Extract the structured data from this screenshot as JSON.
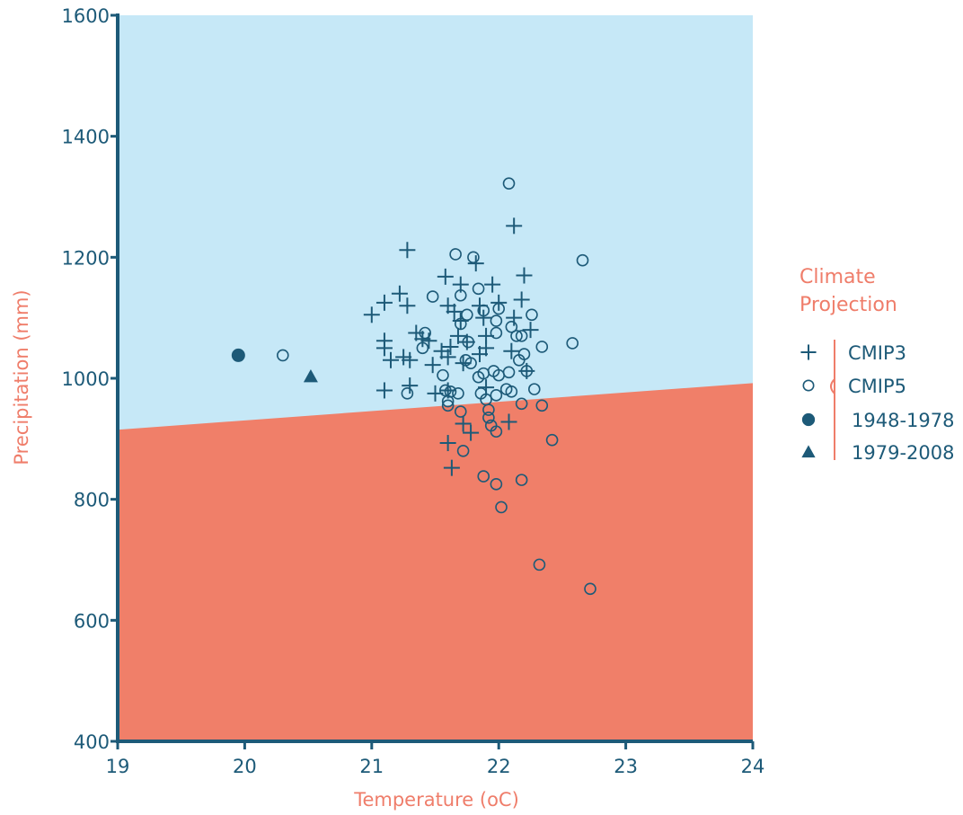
{
  "chart_data": {
    "type": "scatter",
    "title": "",
    "xlabel": "Temperature (oC)",
    "ylabel": "Precipitation (mm)",
    "xlim": [
      19,
      24
    ],
    "ylim": [
      400,
      1600
    ],
    "xticks": [
      19,
      20,
      21,
      22,
      23,
      24
    ],
    "yticks": [
      400,
      600,
      800,
      1000,
      1200,
      1400,
      1600
    ],
    "grid": false,
    "background_regions": [
      {
        "name": "above",
        "color": "#c6e8f7",
        "boundary_line": [
          [
            19,
            915
          ],
          [
            24,
            992
          ]
        ]
      },
      {
        "name": "below",
        "color": "#f07f69"
      }
    ],
    "colors": {
      "marker": "#1d5a78",
      "axis": "#1d5a78",
      "accent": "#ef7d6a"
    },
    "legend": {
      "title": "Climate Projection",
      "placement": "right",
      "entries": [
        {
          "label": "CMIP3",
          "marker": "plus"
        },
        {
          "label": "CMIP5",
          "marker": "circle-open"
        },
        {
          "label": "1948-1978",
          "marker": "circle-filled"
        },
        {
          "label": "1979-2008",
          "marker": "triangle-filled"
        }
      ]
    },
    "series": [
      {
        "name": "CMIP3",
        "marker": "plus",
        "points": [
          [
            21.0,
            1105
          ],
          [
            21.1,
            1125
          ],
          [
            21.1,
            1062
          ],
          [
            21.1,
            1050
          ],
          [
            21.15,
            1030
          ],
          [
            21.1,
            980
          ],
          [
            21.22,
            1140
          ],
          [
            21.25,
            1035
          ],
          [
            21.28,
            1120
          ],
          [
            21.28,
            1212
          ],
          [
            21.3,
            1030
          ],
          [
            21.3,
            988
          ],
          [
            21.35,
            1075
          ],
          [
            21.4,
            1065
          ],
          [
            21.45,
            1062
          ],
          [
            21.48,
            1022
          ],
          [
            21.5,
            975
          ],
          [
            21.55,
            1045
          ],
          [
            21.58,
            1168
          ],
          [
            21.6,
            1120
          ],
          [
            21.6,
            1035
          ],
          [
            21.6,
            980
          ],
          [
            21.6,
            893
          ],
          [
            21.62,
            1052
          ],
          [
            21.63,
            852
          ],
          [
            21.65,
            1110
          ],
          [
            21.68,
            1070
          ],
          [
            21.7,
            1155
          ],
          [
            21.7,
            1095
          ],
          [
            21.72,
            1025
          ],
          [
            21.72,
            925
          ],
          [
            21.75,
            1060
          ],
          [
            21.78,
            910
          ],
          [
            21.82,
            1190
          ],
          [
            21.85,
            1120
          ],
          [
            21.85,
            1040
          ],
          [
            21.88,
            1100
          ],
          [
            21.9,
            1070
          ],
          [
            21.9,
            1050
          ],
          [
            21.9,
            985
          ],
          [
            21.95,
            1155
          ],
          [
            22.0,
            1125
          ],
          [
            22.08,
            928
          ],
          [
            22.1,
            1045
          ],
          [
            22.12,
            1100
          ],
          [
            22.12,
            1252
          ],
          [
            22.18,
            1130
          ],
          [
            22.2,
            1170
          ],
          [
            22.22,
            1012
          ],
          [
            22.25,
            1080
          ]
        ]
      },
      {
        "name": "CMIP5",
        "marker": "circle-open",
        "points": [
          [
            20.3,
            1038
          ],
          [
            21.28,
            975
          ],
          [
            21.4,
            1050
          ],
          [
            21.42,
            1075
          ],
          [
            21.48,
            1135
          ],
          [
            21.56,
            1005
          ],
          [
            21.58,
            980
          ],
          [
            21.6,
            962
          ],
          [
            21.6,
            955
          ],
          [
            21.62,
            978
          ],
          [
            21.66,
            1205
          ],
          [
            21.68,
            975
          ],
          [
            21.7,
            1137
          ],
          [
            21.7,
            1090
          ],
          [
            21.7,
            945
          ],
          [
            21.72,
            880
          ],
          [
            21.74,
            1030
          ],
          [
            21.75,
            1105
          ],
          [
            21.76,
            1060
          ],
          [
            21.78,
            1025
          ],
          [
            21.8,
            1200
          ],
          [
            21.84,
            1148
          ],
          [
            21.84,
            1002
          ],
          [
            21.86,
            975
          ],
          [
            21.88,
            1112
          ],
          [
            21.88,
            1008
          ],
          [
            21.88,
            838
          ],
          [
            21.9,
            965
          ],
          [
            21.92,
            948
          ],
          [
            21.92,
            935
          ],
          [
            21.94,
            922
          ],
          [
            21.96,
            1012
          ],
          [
            21.98,
            1095
          ],
          [
            21.98,
            1075
          ],
          [
            21.98,
            972
          ],
          [
            21.98,
            912
          ],
          [
            21.98,
            825
          ],
          [
            22.0,
            1115
          ],
          [
            22.0,
            1005
          ],
          [
            22.02,
            787
          ],
          [
            22.06,
            982
          ],
          [
            22.08,
            1322
          ],
          [
            22.08,
            1010
          ],
          [
            22.1,
            978
          ],
          [
            22.1,
            1085
          ],
          [
            22.14,
            1070
          ],
          [
            22.16,
            1030
          ],
          [
            22.18,
            1070
          ],
          [
            22.18,
            958
          ],
          [
            22.18,
            832
          ],
          [
            22.2,
            1040
          ],
          [
            22.22,
            1012
          ],
          [
            22.26,
            1105
          ],
          [
            22.28,
            982
          ],
          [
            22.32,
            692
          ],
          [
            22.34,
            955
          ],
          [
            22.34,
            1052
          ],
          [
            22.42,
            898
          ],
          [
            22.58,
            1058
          ],
          [
            22.66,
            1195
          ],
          [
            22.72,
            652
          ]
        ]
      },
      {
        "name": "1948-1978",
        "marker": "circle-filled",
        "points": [
          [
            19.95,
            1038
          ]
        ]
      },
      {
        "name": "1979-2008",
        "marker": "triangle-filled",
        "points": [
          [
            20.52,
            1003
          ]
        ]
      }
    ]
  }
}
